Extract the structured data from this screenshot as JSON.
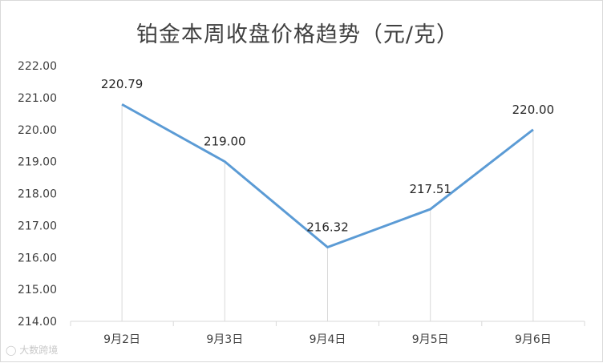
{
  "chart_data": {
    "type": "line",
    "title": "铂金本周收盘价格趋势（元/克）",
    "categories": [
      "9月2日",
      "9月3日",
      "9月4日",
      "9月5日",
      "9月6日"
    ],
    "series": [
      {
        "values": [
          220.79,
          219.0,
          216.32,
          217.51,
          220.0
        ]
      }
    ],
    "data_labels": [
      "220.79",
      "219.00",
      "216.32",
      "217.51",
      "220.00"
    ],
    "yticks": [
      "214.00",
      "215.00",
      "216.00",
      "217.00",
      "218.00",
      "219.00",
      "220.00",
      "221.00",
      "222.00"
    ],
    "ylim": [
      214,
      222
    ],
    "xlabel": "",
    "ylabel": "",
    "grid": false,
    "line_color": "#5b9bd5",
    "drop_line_color": "#d9d9d9"
  },
  "watermark": "大数跨境"
}
